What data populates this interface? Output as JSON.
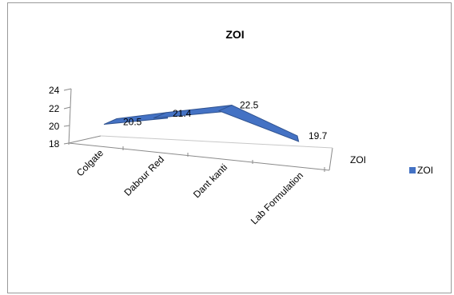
{
  "chart_data": {
    "type": "line",
    "title": "ZOI",
    "categories": [
      "Colgate",
      "Dabour Red",
      "Dant kanti",
      "Lab Formulation"
    ],
    "series": [
      {
        "name": "ZOI",
        "values": [
          20.5,
          21.4,
          22.5,
          19.7
        ],
        "color": "#4472C4"
      }
    ],
    "depth_axis_label": "ZOI",
    "y_ticks": [
      18,
      20,
      22,
      24
    ],
    "ylim": [
      18,
      24
    ],
    "data_labels": [
      "20.5",
      "21.4",
      "22.5",
      "19.7"
    ],
    "legend": {
      "position": "right",
      "label": "ZOI"
    },
    "grid": false
  }
}
